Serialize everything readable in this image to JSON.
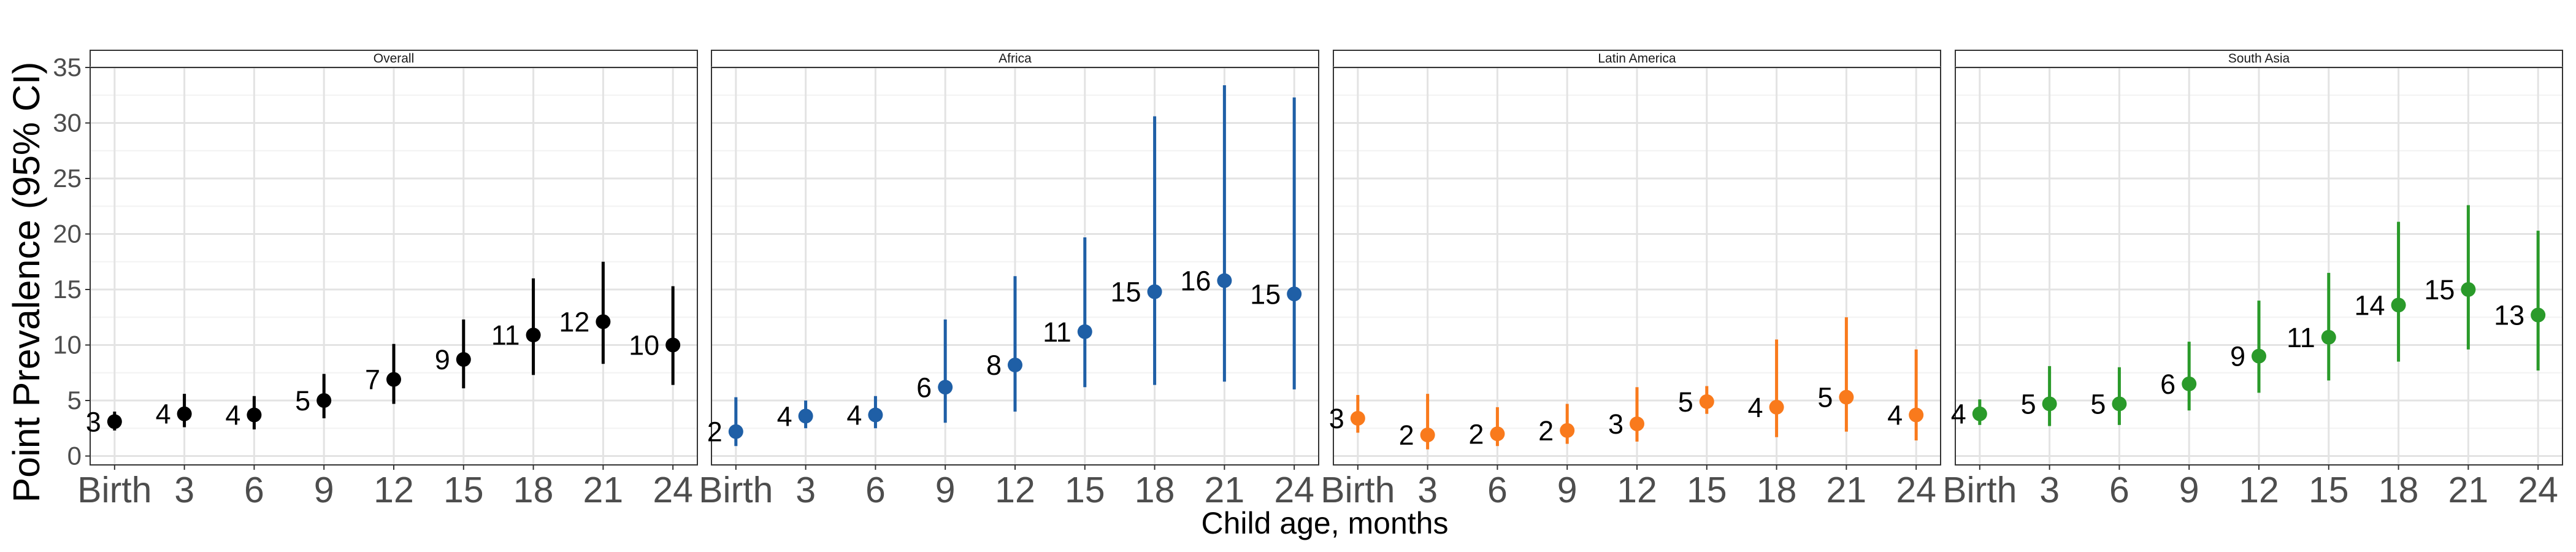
{
  "chart_data": {
    "type": "scatter",
    "subtype": "point-range facets",
    "xlabel": "Child age, months",
    "ylabel": "Point Prevalence (95% CI)",
    "ylim": [
      0,
      35
    ],
    "yticks": [
      0,
      5,
      10,
      15,
      20,
      25,
      30,
      35
    ],
    "categories": [
      "Birth",
      "3",
      "6",
      "9",
      "12",
      "15",
      "18",
      "21",
      "24"
    ],
    "grid": true,
    "legend": "none",
    "facets": [
      {
        "name": "Overall",
        "color": "#000000",
        "points": [
          {
            "x": "Birth",
            "y": 3.1,
            "lo": 2.3,
            "hi": 4.0,
            "label": "3"
          },
          {
            "x": "3",
            "y": 3.8,
            "lo": 2.6,
            "hi": 5.6,
            "label": "4"
          },
          {
            "x": "6",
            "y": 3.7,
            "lo": 2.4,
            "hi": 5.4,
            "label": "4"
          },
          {
            "x": "9",
            "y": 5.0,
            "lo": 3.4,
            "hi": 7.4,
            "label": "5"
          },
          {
            "x": "12",
            "y": 6.9,
            "lo": 4.7,
            "hi": 10.1,
            "label": "7"
          },
          {
            "x": "15",
            "y": 8.7,
            "lo": 6.1,
            "hi": 12.3,
            "label": "9"
          },
          {
            "x": "18",
            "y": 10.9,
            "lo": 7.3,
            "hi": 16.0,
            "label": "11"
          },
          {
            "x": "21",
            "y": 12.1,
            "lo": 8.3,
            "hi": 17.5,
            "label": "12"
          },
          {
            "x": "24",
            "y": 10.0,
            "lo": 6.4,
            "hi": 15.3,
            "label": "10"
          }
        ]
      },
      {
        "name": "Africa",
        "color": "#1f5fa6",
        "points": [
          {
            "x": "Birth",
            "y": 2.2,
            "lo": 0.9,
            "hi": 5.3,
            "label": "2"
          },
          {
            "x": "3",
            "y": 3.6,
            "lo": 2.5,
            "hi": 5.0,
            "label": "4"
          },
          {
            "x": "6",
            "y": 3.7,
            "lo": 2.5,
            "hi": 5.4,
            "label": "4"
          },
          {
            "x": "9",
            "y": 6.2,
            "lo": 3.0,
            "hi": 12.3,
            "label": "6"
          },
          {
            "x": "12",
            "y": 8.2,
            "lo": 4.0,
            "hi": 16.2,
            "label": "8"
          },
          {
            "x": "15",
            "y": 11.2,
            "lo": 6.2,
            "hi": 19.7,
            "label": "11"
          },
          {
            "x": "18",
            "y": 14.8,
            "lo": 6.4,
            "hi": 30.6,
            "label": "15"
          },
          {
            "x": "21",
            "y": 15.8,
            "lo": 6.7,
            "hi": 33.4,
            "label": "16"
          },
          {
            "x": "24",
            "y": 14.6,
            "lo": 6.0,
            "hi": 32.3,
            "label": "15"
          }
        ]
      },
      {
        "name": "Latin America",
        "color": "#f97a1c",
        "points": [
          {
            "x": "Birth",
            "y": 3.4,
            "lo": 2.1,
            "hi": 5.5,
            "label": "3"
          },
          {
            "x": "3",
            "y": 1.9,
            "lo": 0.6,
            "hi": 5.6,
            "label": "2"
          },
          {
            "x": "6",
            "y": 2.0,
            "lo": 0.9,
            "hi": 4.4,
            "label": "2"
          },
          {
            "x": "9",
            "y": 2.3,
            "lo": 1.1,
            "hi": 4.7,
            "label": "2"
          },
          {
            "x": "12",
            "y": 2.9,
            "lo": 1.3,
            "hi": 6.2,
            "label": "3"
          },
          {
            "x": "15",
            "y": 4.9,
            "lo": 3.8,
            "hi": 6.3,
            "label": "5"
          },
          {
            "x": "18",
            "y": 4.4,
            "lo": 1.7,
            "hi": 10.5,
            "label": "4"
          },
          {
            "x": "21",
            "y": 5.3,
            "lo": 2.2,
            "hi": 12.5,
            "label": "5"
          },
          {
            "x": "24",
            "y": 3.7,
            "lo": 1.4,
            "hi": 9.6,
            "label": "4"
          }
        ]
      },
      {
        "name": "South Asia",
        "color": "#2a9a2a",
        "points": [
          {
            "x": "Birth",
            "y": 3.8,
            "lo": 2.8,
            "hi": 5.1,
            "label": "4"
          },
          {
            "x": "3",
            "y": 4.7,
            "lo": 2.7,
            "hi": 8.1,
            "label": "5"
          },
          {
            "x": "6",
            "y": 4.7,
            "lo": 2.8,
            "hi": 8.0,
            "label": "5"
          },
          {
            "x": "9",
            "y": 6.5,
            "lo": 4.1,
            "hi": 10.3,
            "label": "6"
          },
          {
            "x": "12",
            "y": 9.0,
            "lo": 5.7,
            "hi": 14.0,
            "label": "9"
          },
          {
            "x": "15",
            "y": 10.7,
            "lo": 6.8,
            "hi": 16.5,
            "label": "11"
          },
          {
            "x": "18",
            "y": 13.6,
            "lo": 8.5,
            "hi": 21.1,
            "label": "14"
          },
          {
            "x": "21",
            "y": 15.0,
            "lo": 9.6,
            "hi": 22.6,
            "label": "15"
          },
          {
            "x": "24",
            "y": 12.7,
            "lo": 7.7,
            "hi": 20.3,
            "label": "13"
          }
        ]
      }
    ]
  }
}
